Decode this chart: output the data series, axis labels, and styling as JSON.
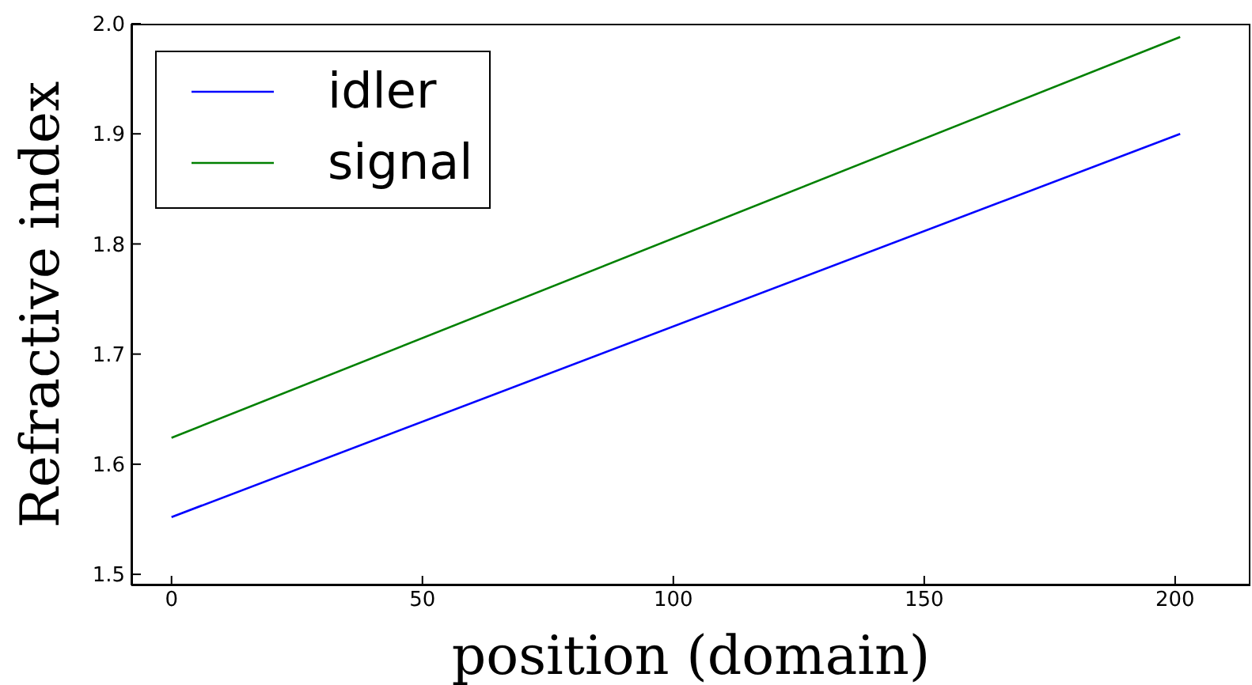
{
  "chart_data": {
    "type": "line",
    "xlabel": "position (domain)",
    "ylabel": "Refractive index",
    "xlim": [
      -8,
      215
    ],
    "xticks": [
      0,
      50,
      100,
      150,
      200
    ],
    "ylim": [
      1.49,
      2.0
    ],
    "yticks": [
      1.5,
      1.6,
      1.7,
      1.8,
      1.9,
      {
        "value": 2.0,
        "label": "2.0"
      }
    ],
    "x": [
      0,
      201
    ],
    "series": [
      {
        "name": "idler",
        "color": "#0000ff",
        "values": [
          1.552,
          1.9
        ]
      },
      {
        "name": "signal",
        "color": "#008000",
        "values": [
          1.624,
          1.988
        ]
      }
    ],
    "legend": "top left",
    "grid": false,
    "marker": "none",
    "line_style": "solid"
  }
}
